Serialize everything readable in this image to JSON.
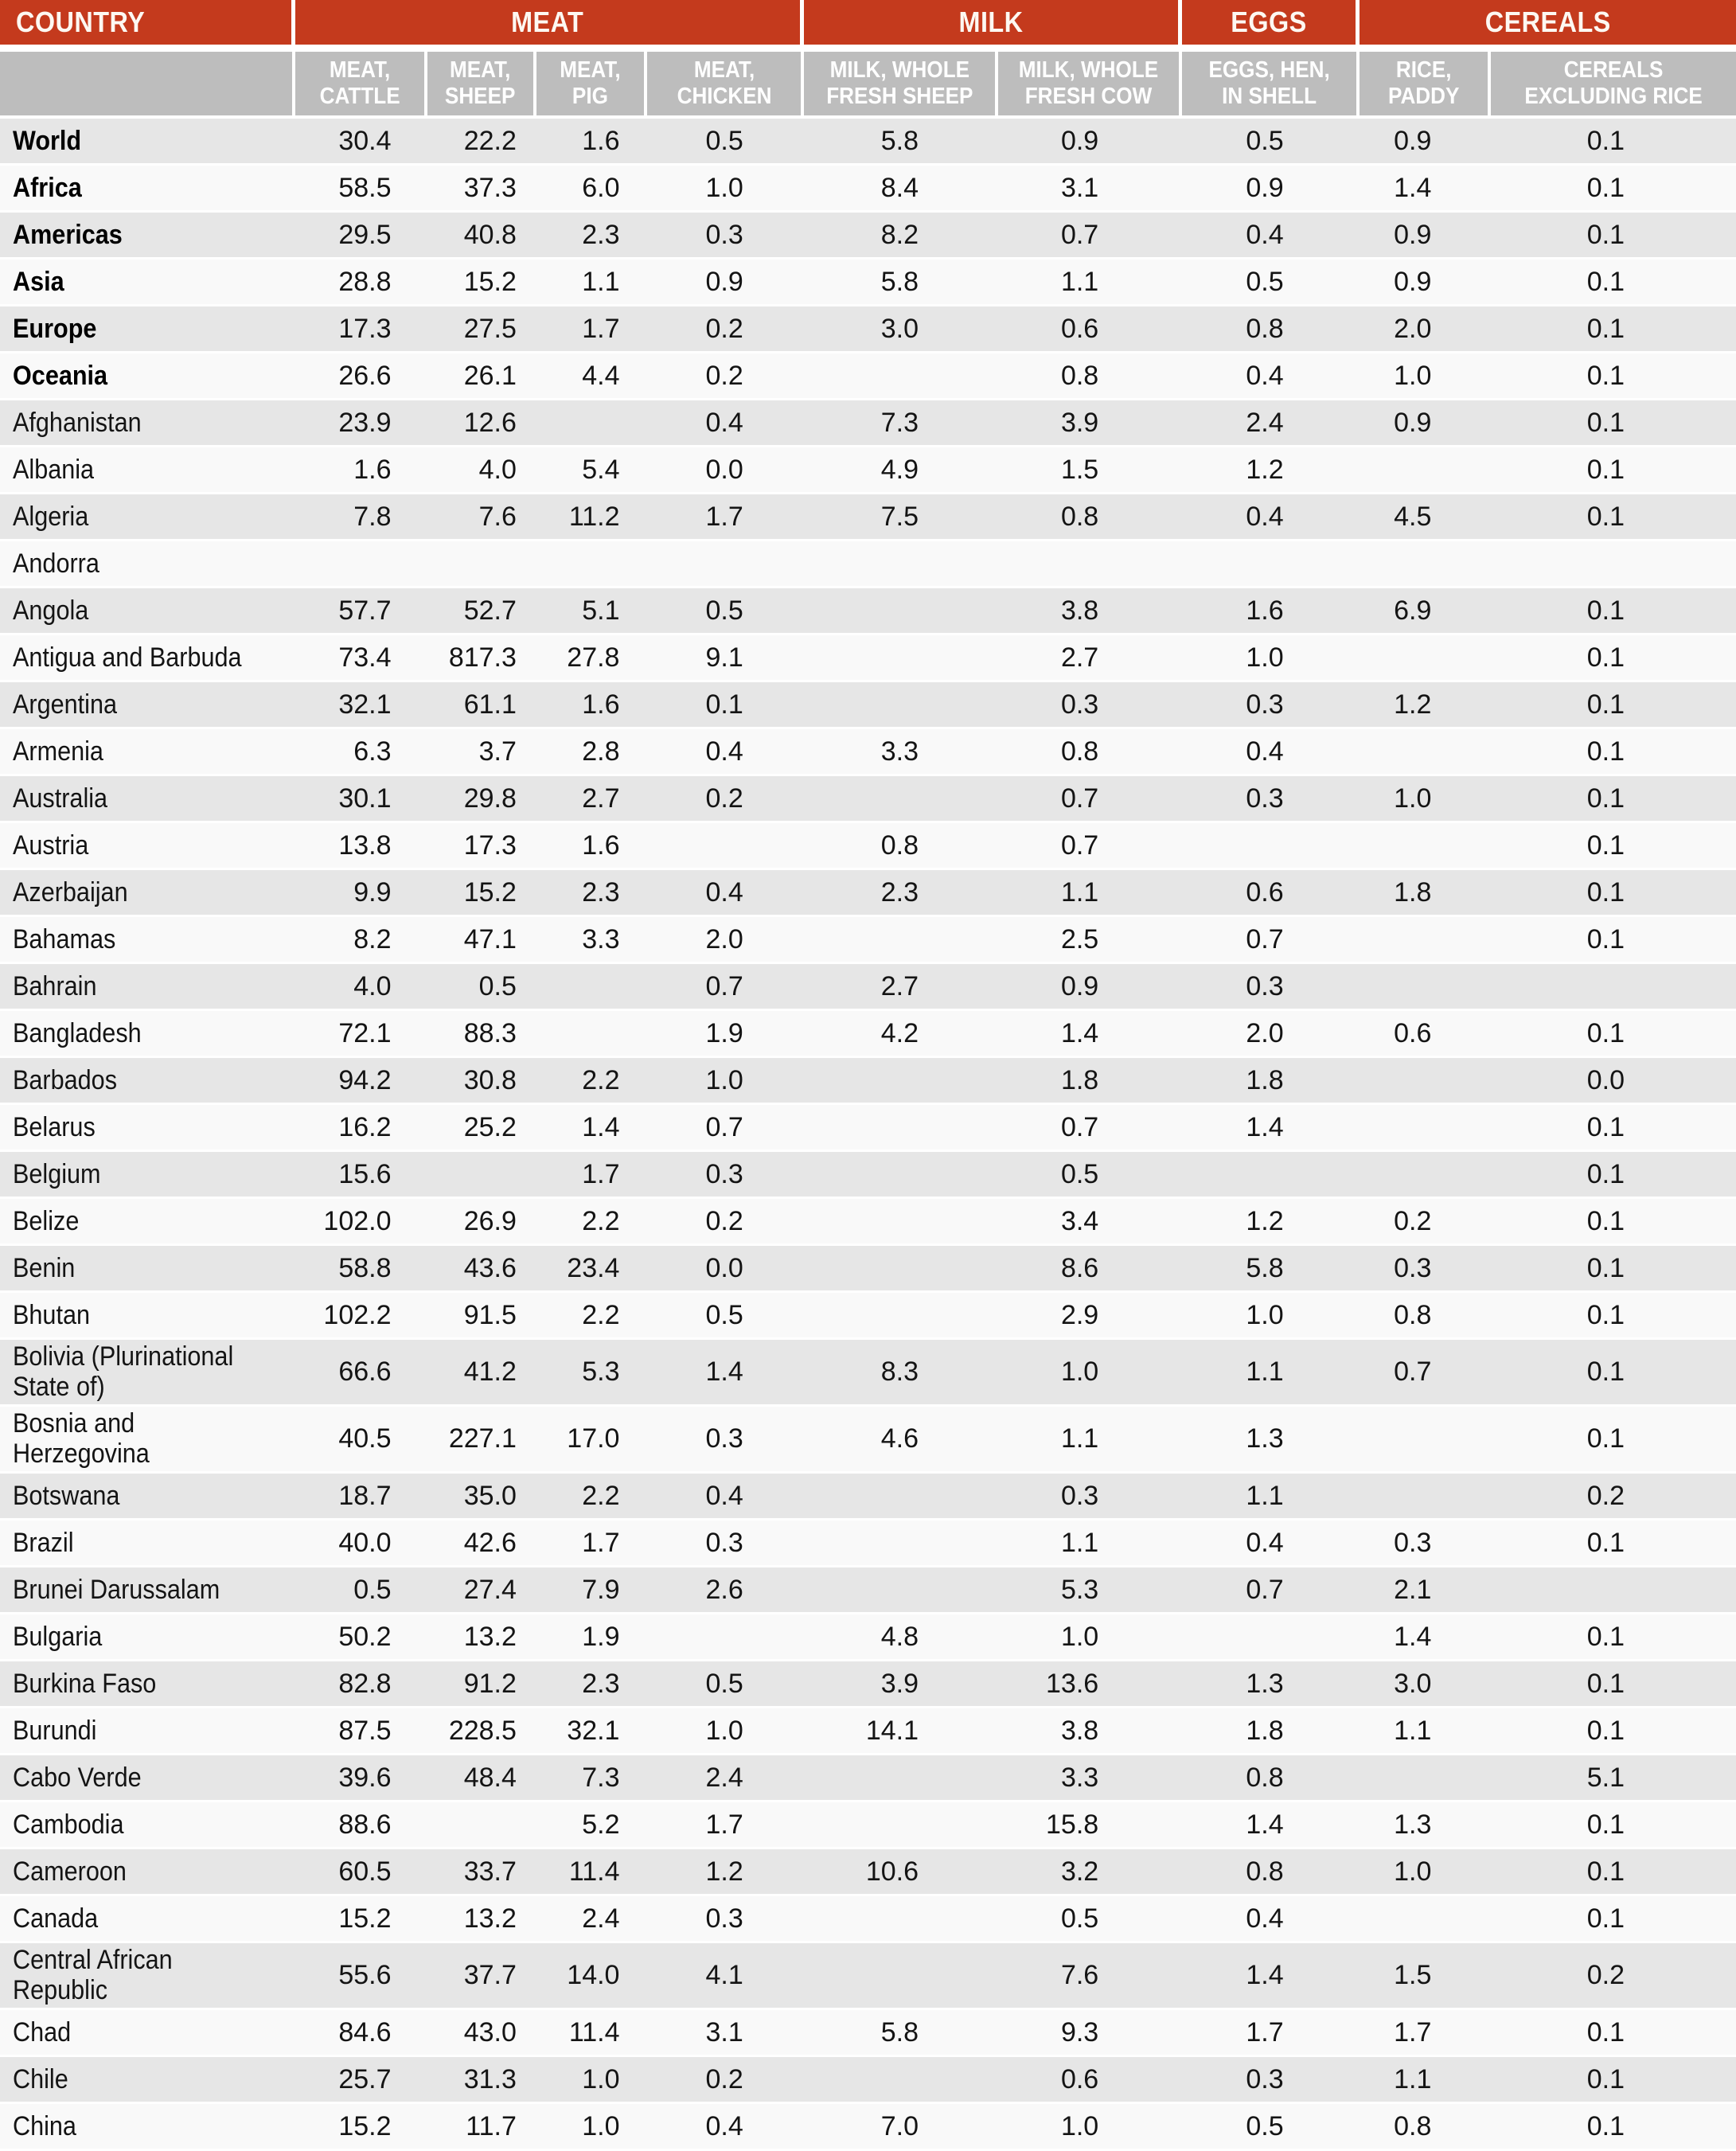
{
  "colors": {
    "header_red": "#C43A1D",
    "subheader_gray": "#BDBDBD",
    "row_stripe_gray": "#E6E6E6",
    "row_stripe_light": "#F9F9F9"
  },
  "table": {
    "country_header": "COUNTRY",
    "groups": [
      {
        "label": "MEAT",
        "columns": 4
      },
      {
        "label": "MILK",
        "columns": 2
      },
      {
        "label": "EGGS",
        "columns": 1
      },
      {
        "label": "CEREALS",
        "columns": 2
      }
    ],
    "columns": [
      "MEAT,\nCATTLE",
      "MEAT,\nSHEEP",
      "MEAT,\nPIG",
      "MEAT,\nCHICKEN",
      "MILK, WHOLE\nFRESH SHEEP",
      "MILK, WHOLE\nFRESH COW",
      "EGGS, HEN,\nIN SHELL",
      "RICE,\nPADDY",
      "CEREALS\nEXCLUDING RICE"
    ],
    "rows": [
      {
        "country": "World",
        "bold": true,
        "values": [
          "30.4",
          "22.2",
          "1.6",
          "0.5",
          "5.8",
          "0.9",
          "0.5",
          "0.9",
          "0.1"
        ]
      },
      {
        "country": "Africa",
        "bold": true,
        "values": [
          "58.5",
          "37.3",
          "6.0",
          "1.0",
          "8.4",
          "3.1",
          "0.9",
          "1.4",
          "0.1"
        ]
      },
      {
        "country": "Americas",
        "bold": true,
        "values": [
          "29.5",
          "40.8",
          "2.3",
          "0.3",
          "8.2",
          "0.7",
          "0.4",
          "0.9",
          "0.1"
        ]
      },
      {
        "country": "Asia",
        "bold": true,
        "values": [
          "28.8",
          "15.2",
          "1.1",
          "0.9",
          "5.8",
          "1.1",
          "0.5",
          "0.9",
          "0.1"
        ]
      },
      {
        "country": "Europe",
        "bold": true,
        "values": [
          "17.3",
          "27.5",
          "1.7",
          "0.2",
          "3.0",
          "0.6",
          "0.8",
          "2.0",
          "0.1"
        ]
      },
      {
        "country": "Oceania",
        "bold": true,
        "values": [
          "26.6",
          "26.1",
          "4.4",
          "0.2",
          "",
          "0.8",
          "0.4",
          "1.0",
          "0.1"
        ]
      },
      {
        "country": "Afghanistan",
        "bold": false,
        "values": [
          "23.9",
          "12.6",
          "",
          "0.4",
          "7.3",
          "3.9",
          "2.4",
          "0.9",
          "0.1"
        ]
      },
      {
        "country": "Albania",
        "bold": false,
        "values": [
          "1.6",
          "4.0",
          "5.4",
          "0.0",
          "4.9",
          "1.5",
          "1.2",
          "",
          "0.1"
        ]
      },
      {
        "country": "Algeria",
        "bold": false,
        "values": [
          "7.8",
          "7.6",
          "11.2",
          "1.7",
          "7.5",
          "0.8",
          "0.4",
          "4.5",
          "0.1"
        ]
      },
      {
        "country": "Andorra",
        "bold": false,
        "values": [
          "",
          "",
          "",
          "",
          "",
          "",
          "",
          "",
          ""
        ]
      },
      {
        "country": "Angola",
        "bold": false,
        "values": [
          "57.7",
          "52.7",
          "5.1",
          "0.5",
          "",
          "3.8",
          "1.6",
          "6.9",
          "0.1"
        ]
      },
      {
        "country": "Antigua and Barbuda",
        "bold": false,
        "values": [
          "73.4",
          "817.3",
          "27.8",
          "9.1",
          "",
          "2.7",
          "1.0",
          "",
          "0.1"
        ]
      },
      {
        "country": "Argentina",
        "bold": false,
        "values": [
          "32.1",
          "61.1",
          "1.6",
          "0.1",
          "",
          "0.3",
          "0.3",
          "1.2",
          "0.1"
        ]
      },
      {
        "country": "Armenia",
        "bold": false,
        "values": [
          "6.3",
          "3.7",
          "2.8",
          "0.4",
          "3.3",
          "0.8",
          "0.4",
          "",
          "0.1"
        ]
      },
      {
        "country": "Australia",
        "bold": false,
        "values": [
          "30.1",
          "29.8",
          "2.7",
          "0.2",
          "",
          "0.7",
          "0.3",
          "1.0",
          "0.1"
        ]
      },
      {
        "country": "Austria",
        "bold": false,
        "values": [
          "13.8",
          "17.3",
          "1.6",
          "",
          "0.8",
          "0.7",
          "",
          "",
          "0.1"
        ]
      },
      {
        "country": "Azerbaijan",
        "bold": false,
        "values": [
          "9.9",
          "15.2",
          "2.3",
          "0.4",
          "2.3",
          "1.1",
          "0.6",
          "1.8",
          "0.1"
        ]
      },
      {
        "country": "Bahamas",
        "bold": false,
        "values": [
          "8.2",
          "47.1",
          "3.3",
          "2.0",
          "",
          "2.5",
          "0.7",
          "",
          "0.1"
        ]
      },
      {
        "country": "Bahrain",
        "bold": false,
        "values": [
          "4.0",
          "0.5",
          "",
          "0.7",
          "2.7",
          "0.9",
          "0.3",
          "",
          ""
        ]
      },
      {
        "country": "Bangladesh",
        "bold": false,
        "values": [
          "72.1",
          "88.3",
          "",
          "1.9",
          "4.2",
          "1.4",
          "2.0",
          "0.6",
          "0.1"
        ]
      },
      {
        "country": "Barbados",
        "bold": false,
        "values": [
          "94.2",
          "30.8",
          "2.2",
          "1.0",
          "",
          "1.8",
          "1.8",
          "",
          "0.0"
        ]
      },
      {
        "country": "Belarus",
        "bold": false,
        "values": [
          "16.2",
          "25.2",
          "1.4",
          "0.7",
          "",
          "0.7",
          "1.4",
          "",
          "0.1"
        ]
      },
      {
        "country": "Belgium",
        "bold": false,
        "values": [
          "15.6",
          "",
          "1.7",
          "0.3",
          "",
          "0.5",
          "",
          "",
          "0.1"
        ]
      },
      {
        "country": "Belize",
        "bold": false,
        "values": [
          "102.0",
          "26.9",
          "2.2",
          "0.2",
          "",
          "3.4",
          "1.2",
          "0.2",
          "0.1"
        ]
      },
      {
        "country": "Benin",
        "bold": false,
        "values": [
          "58.8",
          "43.6",
          "23.4",
          "0.0",
          "",
          "8.6",
          "5.8",
          "0.3",
          "0.1"
        ]
      },
      {
        "country": "Bhutan",
        "bold": false,
        "values": [
          "102.2",
          "91.5",
          "2.2",
          "0.5",
          "",
          "2.9",
          "1.0",
          "0.8",
          "0.1"
        ]
      },
      {
        "country": "Bolivia (Plurinational\nState of)",
        "bold": false,
        "values": [
          "66.6",
          "41.2",
          "5.3",
          "1.4",
          "8.3",
          "1.0",
          "1.1",
          "0.7",
          "0.1"
        ]
      },
      {
        "country": "Bosnia and Herzegovina",
        "bold": false,
        "values": [
          "40.5",
          "227.1",
          "17.0",
          "0.3",
          "4.6",
          "1.1",
          "1.3",
          "",
          "0.1"
        ]
      },
      {
        "country": "Botswana",
        "bold": false,
        "values": [
          "18.7",
          "35.0",
          "2.2",
          "0.4",
          "",
          "0.3",
          "1.1",
          "",
          "0.2"
        ]
      },
      {
        "country": "Brazil",
        "bold": false,
        "values": [
          "40.0",
          "42.6",
          "1.7",
          "0.3",
          "",
          "1.1",
          "0.4",
          "0.3",
          "0.1"
        ]
      },
      {
        "country": "Brunei Darussalam",
        "bold": false,
        "values": [
          "0.5",
          "27.4",
          "7.9",
          "2.6",
          "",
          "5.3",
          "0.7",
          "2.1",
          ""
        ]
      },
      {
        "country": "Bulgaria",
        "bold": false,
        "values": [
          "50.2",
          "13.2",
          "1.9",
          "",
          "4.8",
          "1.0",
          "",
          "1.4",
          "0.1"
        ]
      },
      {
        "country": "Burkina Faso",
        "bold": false,
        "values": [
          "82.8",
          "91.2",
          "2.3",
          "0.5",
          "3.9",
          "13.6",
          "1.3",
          "3.0",
          "0.1"
        ]
      },
      {
        "country": "Burundi",
        "bold": false,
        "values": [
          "87.5",
          "228.5",
          "32.1",
          "1.0",
          "14.1",
          "3.8",
          "1.8",
          "1.1",
          "0.1"
        ]
      },
      {
        "country": "Cabo Verde",
        "bold": false,
        "values": [
          "39.6",
          "48.4",
          "7.3",
          "2.4",
          "",
          "3.3",
          "0.8",
          "",
          "5.1"
        ]
      },
      {
        "country": "Cambodia",
        "bold": false,
        "values": [
          "88.6",
          "",
          "5.2",
          "1.7",
          "",
          "15.8",
          "1.4",
          "1.3",
          "0.1"
        ]
      },
      {
        "country": "Cameroon",
        "bold": false,
        "values": [
          "60.5",
          "33.7",
          "11.4",
          "1.2",
          "10.6",
          "3.2",
          "0.8",
          "1.0",
          "0.1"
        ]
      },
      {
        "country": "Canada",
        "bold": false,
        "values": [
          "15.2",
          "13.2",
          "2.4",
          "0.3",
          "",
          "0.5",
          "0.4",
          "",
          "0.1"
        ]
      },
      {
        "country": "Central African Republic",
        "bold": false,
        "values": [
          "55.6",
          "37.7",
          "14.0",
          "4.1",
          "",
          "7.6",
          "1.4",
          "1.5",
          "0.2"
        ]
      },
      {
        "country": "Chad",
        "bold": false,
        "values": [
          "84.6",
          "43.0",
          "11.4",
          "3.1",
          "5.8",
          "9.3",
          "1.7",
          "1.7",
          "0.1"
        ]
      },
      {
        "country": "Chile",
        "bold": false,
        "values": [
          "25.7",
          "31.3",
          "1.0",
          "0.2",
          "",
          "0.6",
          "0.3",
          "1.1",
          "0.1"
        ]
      },
      {
        "country": "China",
        "bold": false,
        "values": [
          "15.2",
          "11.7",
          "1.0",
          "0.4",
          "7.0",
          "1.0",
          "0.5",
          "0.8",
          "0.1"
        ]
      }
    ]
  }
}
